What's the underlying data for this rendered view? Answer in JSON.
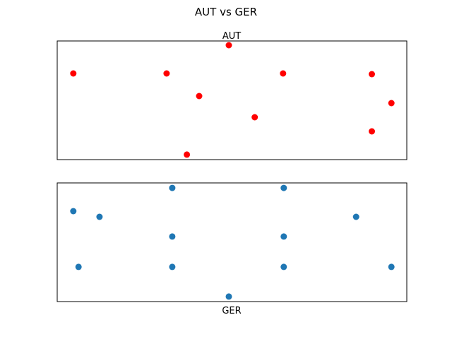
{
  "title": "AUT vs GER",
  "chart_data": [
    {
      "type": "scatter",
      "title": "AUT",
      "color": "#ff0000",
      "axes_visible": false,
      "xlim": [
        0,
        100
      ],
      "ylim": [
        0,
        100
      ],
      "points": [
        {
          "x": 4.6,
          "y": 72.6
        },
        {
          "x": 31.3,
          "y": 72.6
        },
        {
          "x": 49.1,
          "y": 96.4
        },
        {
          "x": 64.6,
          "y": 72.6
        },
        {
          "x": 90,
          "y": 72
        },
        {
          "x": 40.6,
          "y": 53.6
        },
        {
          "x": 56.5,
          "y": 35.7
        },
        {
          "x": 95.6,
          "y": 47.6
        },
        {
          "x": 90,
          "y": 23.8
        },
        {
          "x": 37.1,
          "y": 4.2
        }
      ]
    },
    {
      "type": "scatter",
      "title": "GER",
      "color": "#1f77b4",
      "axes_visible": false,
      "xlim": [
        0,
        100
      ],
      "ylim": [
        0,
        100
      ],
      "points": [
        {
          "x": 32.9,
          "y": 95.8
        },
        {
          "x": 64.8,
          "y": 95.8
        },
        {
          "x": 4.6,
          "y": 76.2
        },
        {
          "x": 12.1,
          "y": 71.4
        },
        {
          "x": 85.5,
          "y": 71.4
        },
        {
          "x": 32.9,
          "y": 54.8
        },
        {
          "x": 64.8,
          "y": 54.8
        },
        {
          "x": 6.1,
          "y": 29.2
        },
        {
          "x": 32.9,
          "y": 29.2
        },
        {
          "x": 64.8,
          "y": 29.2
        },
        {
          "x": 95.6,
          "y": 29.2
        },
        {
          "x": 49.1,
          "y": 4.2
        }
      ]
    }
  ]
}
